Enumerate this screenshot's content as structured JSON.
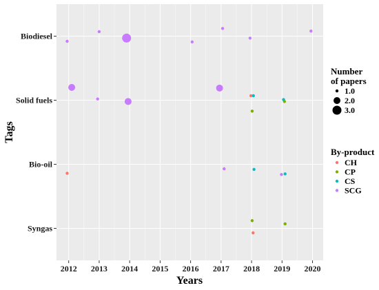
{
  "chart_data": {
    "type": "scatter",
    "title": "",
    "xlabel": "Years",
    "ylabel": "Tags",
    "x_ticks": [
      "2012",
      "2013",
      "2014",
      "2015",
      "2016",
      "2017",
      "2018",
      "2019",
      "2020"
    ],
    "x_range": [
      2011.6,
      2020.35
    ],
    "y_categories": [
      "Biodiesel",
      "Solid fuels",
      "Bio-oil",
      "Syngas"
    ],
    "grid": true,
    "legend_position": "right",
    "size_legend": {
      "title_lines": [
        "Number",
        "of papers"
      ],
      "entries": [
        {
          "label": "1.0",
          "value": 1
        },
        {
          "label": "2.0",
          "value": 2
        },
        {
          "label": "3.0",
          "value": 3
        }
      ]
    },
    "colors": {
      "panel": "#ebebeb",
      "grid": "#ffffff",
      "CH": "#f8766d",
      "CP": "#7cae00",
      "CS": "#00bfc4",
      "SCG": "#c77cff"
    },
    "color_legend": {
      "title": "By-product",
      "entries": [
        "CH",
        "CP",
        "CS",
        "SCG"
      ]
    },
    "points": [
      {
        "x": 2011.95,
        "tag": "Biodiesel",
        "offset": -0.08,
        "product": "SCG",
        "papers": 1
      },
      {
        "x": 2013.0,
        "tag": "Biodiesel",
        "offset": 0.07,
        "product": "SCG",
        "papers": 1
      },
      {
        "x": 2013.9,
        "tag": "Biodiesel",
        "offset": -0.03,
        "product": "SCG",
        "papers": 3
      },
      {
        "x": 2016.05,
        "tag": "Biodiesel",
        "offset": -0.09,
        "product": "SCG",
        "papers": 1
      },
      {
        "x": 2017.05,
        "tag": "Biodiesel",
        "offset": 0.12,
        "product": "SCG",
        "papers": 1
      },
      {
        "x": 2017.95,
        "tag": "Biodiesel",
        "offset": -0.03,
        "product": "SCG",
        "papers": 1
      },
      {
        "x": 2019.95,
        "tag": "Biodiesel",
        "offset": 0.08,
        "product": "SCG",
        "papers": 1
      },
      {
        "x": 2012.1,
        "tag": "Solid fuels",
        "offset": 0.2,
        "product": "SCG",
        "papers": 2
      },
      {
        "x": 2012.95,
        "tag": "Solid fuels",
        "offset": 0.02,
        "product": "SCG",
        "papers": 1
      },
      {
        "x": 2013.95,
        "tag": "Solid fuels",
        "offset": -0.02,
        "product": "SCG",
        "papers": 2
      },
      {
        "x": 2016.95,
        "tag": "Solid fuels",
        "offset": 0.19,
        "product": "SCG",
        "papers": 2
      },
      {
        "x": 2017.98,
        "tag": "Solid fuels",
        "offset": 0.07,
        "product": "CH",
        "papers": 1
      },
      {
        "x": 2018.06,
        "tag": "Solid fuels",
        "offset": 0.07,
        "product": "CS",
        "papers": 1
      },
      {
        "x": 2018.02,
        "tag": "Solid fuels",
        "offset": -0.17,
        "product": "CP",
        "papers": 1
      },
      {
        "x": 2019.05,
        "tag": "Solid fuels",
        "offset": 0.01,
        "product": "CS",
        "papers": 1
      },
      {
        "x": 2019.08,
        "tag": "Solid fuels",
        "offset": -0.02,
        "product": "CP",
        "papers": 1
      },
      {
        "x": 2011.95,
        "tag": "Bio-oil",
        "offset": -0.14,
        "product": "CH",
        "papers": 1
      },
      {
        "x": 2017.1,
        "tag": "Bio-oil",
        "offset": -0.07,
        "product": "SCG",
        "papers": 1
      },
      {
        "x": 2018.08,
        "tag": "Bio-oil",
        "offset": -0.08,
        "product": "CS",
        "papers": 1
      },
      {
        "x": 2018.98,
        "tag": "Bio-oil",
        "offset": -0.16,
        "product": "SCG",
        "papers": 1
      },
      {
        "x": 2019.1,
        "tag": "Bio-oil",
        "offset": -0.15,
        "product": "CS",
        "papers": 1
      },
      {
        "x": 2018.02,
        "tag": "Syngas",
        "offset": 0.12,
        "product": "CP",
        "papers": 1
      },
      {
        "x": 2018.05,
        "tag": "Syngas",
        "offset": -0.07,
        "product": "CH",
        "papers": 1
      },
      {
        "x": 2019.1,
        "tag": "Syngas",
        "offset": 0.07,
        "product": "CP",
        "papers": 1
      }
    ]
  }
}
